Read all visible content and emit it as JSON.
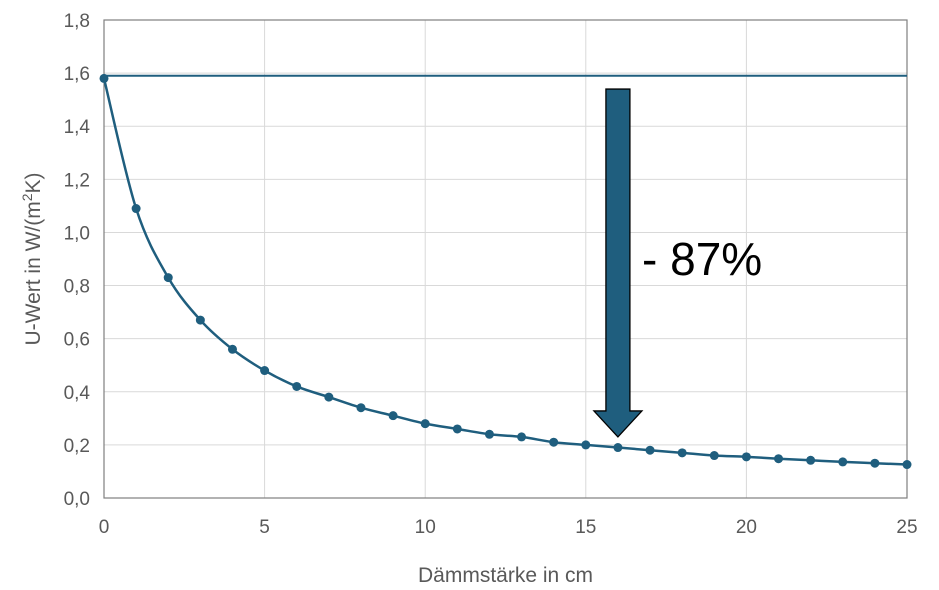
{
  "chart_data": {
    "type": "line",
    "xlabel": "Dämmstärke in cm",
    "ylabel_parts": {
      "main": "U-Wert in W/(m",
      "sup": "2",
      "end": "K)"
    },
    "xlim": [
      0,
      25
    ],
    "ylim": [
      0,
      1.8
    ],
    "xticks": [
      "0",
      "5",
      "10",
      "15",
      "20",
      "25"
    ],
    "yticks": [
      "0,0",
      "0,2",
      "0,4",
      "0,6",
      "0,8",
      "1,0",
      "1,2",
      "1,4",
      "1,6",
      "1,8"
    ],
    "grid": true,
    "series": [
      {
        "x": [
          0,
          1,
          2,
          3,
          4,
          5,
          6,
          7,
          8,
          9,
          10,
          11,
          12,
          13,
          14,
          15,
          16,
          17,
          18,
          19,
          20,
          21,
          22,
          23,
          24,
          25
        ],
        "values": [
          1.58,
          1.09,
          0.83,
          0.67,
          0.56,
          0.48,
          0.42,
          0.38,
          0.34,
          0.31,
          0.28,
          0.26,
          0.24,
          0.23,
          0.21,
          0.2,
          0.19,
          0.18,
          0.17,
          0.16,
          0.155,
          0.148,
          0.142,
          0.136,
          0.131,
          0.126
        ]
      }
    ],
    "reference_line": {
      "y": 1.59
    },
    "arrow": {
      "x": 16,
      "y_from": 1.54,
      "y_to": 0.23
    },
    "annotation": {
      "text": "- 87%",
      "x": 17,
      "y": 0.9
    },
    "colors": {
      "series": "#1f5e7e",
      "arrow_fill": "#1f5e7e",
      "arrow_stroke": "#000000",
      "grid": "#d9d9d9",
      "axis": "#7f7f7f"
    }
  }
}
